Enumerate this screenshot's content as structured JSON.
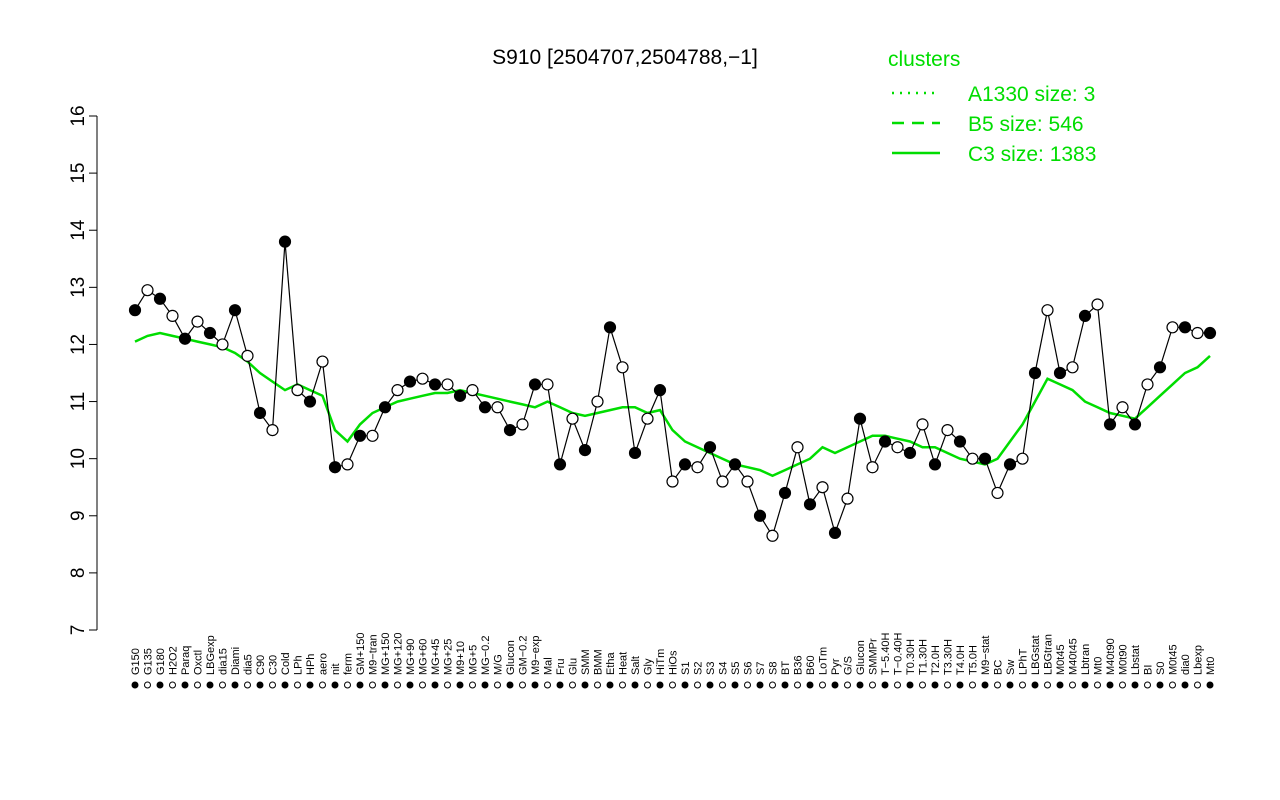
{
  "chart_data": {
    "type": "line",
    "title": "S910 [2504707,2504788,−1]",
    "xlabel": "",
    "ylabel": "",
    "ylim": [
      7,
      16
    ],
    "yticks": [
      7,
      8,
      9,
      10,
      11,
      12,
      13,
      14,
      15,
      16
    ],
    "xtick_labels": [
      "G150",
      "G135",
      "G180",
      "H2O2",
      "Paraq",
      "Oxctl",
      "LBGexp",
      "dia15",
      "Diami",
      "dia5",
      "C90",
      "C30",
      "Cold",
      "LPh",
      "HPh",
      "aero",
      "nit",
      "ferm",
      "GM+150",
      "M9−tran",
      "MG+150",
      "MG+120",
      "MG+90",
      "MG+60",
      "MG+45",
      "MG+25",
      "M9+10",
      "MG+5",
      "MG−0.2",
      "M/G",
      "Glucon",
      "GM−0.2",
      "M9−exp",
      "Mal",
      "Fru",
      "Glu",
      "SMM",
      "BMM",
      "Etha",
      "Heat",
      "Salt",
      "Gly",
      "HiTm",
      "HiOs",
      "S1",
      "S2",
      "S3",
      "S4",
      "S5",
      "S6",
      "S7",
      "S8",
      "BT",
      "B36",
      "B60",
      "LoTm",
      "Pyr",
      "G/S",
      "Glucon",
      "SMMPr",
      "T−5.40H",
      "T−0.40H",
      "T0.30H",
      "T1.30H",
      "T2.0H",
      "T3.30H",
      "T4.0H",
      "T5.0H",
      "M9−stat",
      "BC",
      "Sw",
      "LPhT",
      "LBGstat",
      "LBGtran",
      "M0t45",
      "M40t45",
      "Lbtran",
      "Mt0",
      "M40t90",
      "M0t90",
      "Lbstat",
      "BI",
      "S0",
      "M0t45",
      "dia0",
      "Lbexp",
      "Mt0"
    ],
    "legend": {
      "title": "clusters",
      "position": "top-right",
      "entries": [
        {
          "label": "A1330 size: 3",
          "style": "dotted"
        },
        {
          "label": "B5 size: 546",
          "style": "dashed"
        },
        {
          "label": "C3 size: 1383",
          "style": "solid"
        }
      ]
    },
    "series": [
      {
        "name": "C3 size: 1383",
        "values": [
          12.05,
          12.15,
          12.2,
          12.15,
          12.1,
          12.05,
          12.0,
          11.95,
          11.85,
          11.7,
          11.5,
          11.35,
          11.2,
          11.3,
          11.2,
          11.1,
          10.5,
          10.3,
          10.6,
          10.8,
          10.9,
          11.0,
          11.05,
          11.1,
          11.15,
          11.15,
          11.2,
          11.15,
          11.1,
          11.05,
          11.0,
          10.95,
          10.9,
          11.0,
          10.9,
          10.8,
          10.75,
          10.8,
          10.85,
          10.9,
          10.9,
          10.8,
          10.85,
          10.5,
          10.3,
          10.2,
          10.1,
          10.0,
          9.9,
          9.85,
          9.8,
          9.7,
          9.8,
          9.9,
          10.0,
          10.2,
          10.1,
          10.2,
          10.3,
          10.4,
          10.4,
          10.35,
          10.3,
          10.2,
          10.2,
          10.1,
          10.0,
          9.95,
          9.9,
          10.0,
          10.3,
          10.6,
          11.0,
          11.4,
          11.3,
          11.2,
          11.0,
          10.9,
          10.8,
          10.75,
          10.7,
          10.9,
          11.1,
          11.3,
          11.5,
          11.6,
          11.8
        ]
      }
    ],
    "points": [
      12.6,
      12.95,
      12.8,
      12.5,
      12.1,
      12.4,
      12.2,
      12.0,
      12.6,
      11.8,
      10.8,
      10.5,
      13.8,
      11.2,
      11.0,
      11.7,
      9.85,
      9.9,
      10.4,
      10.4,
      10.9,
      11.2,
      11.35,
      11.4,
      11.3,
      11.3,
      11.1,
      11.2,
      10.9,
      10.9,
      10.5,
      10.6,
      11.3,
      11.3,
      9.9,
      10.7,
      10.15,
      11.0,
      12.3,
      11.6,
      10.1,
      10.7,
      11.2,
      9.6,
      9.9,
      9.85,
      10.2,
      9.6,
      9.9,
      9.6,
      9.0,
      8.65,
      9.4,
      10.2,
      9.2,
      9.5,
      8.7,
      9.3,
      10.7,
      9.85,
      10.3,
      10.2,
      10.1,
      10.6,
      9.9,
      10.5,
      10.3,
      10.0,
      10.0,
      9.4,
      9.9,
      10.0,
      11.5,
      12.6,
      11.5,
      11.6,
      12.5,
      12.7,
      10.6,
      10.9,
      10.6,
      11.3,
      11.6,
      12.3,
      12.3,
      12.2,
      12.2
    ]
  }
}
